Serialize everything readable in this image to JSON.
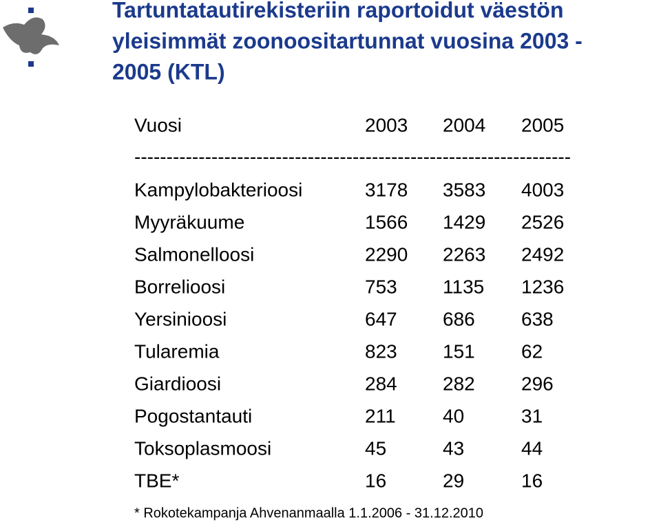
{
  "title": [
    "Tartuntatautirekisteriin raportoidut väestön",
    "yleisimmät zoonoositartunnat vuosina 2003 -",
    "2005 (KTL)"
  ],
  "table": {
    "header": [
      "Vuosi",
      2003,
      2004,
      2005
    ],
    "separator": "--------------------------------------------------------------------",
    "rows": [
      [
        "Kampylobakterioosi",
        3178,
        3583,
        4003
      ],
      [
        "Myyräkuume",
        1566,
        1429,
        2526
      ],
      [
        "Salmonelloosi",
        2290,
        2263,
        2492
      ],
      [
        "Borrelioosi",
        753,
        1135,
        1236
      ],
      [
        "Yersinioosi",
        647,
        686,
        638
      ],
      [
        "Tularemia",
        823,
        151,
        62
      ],
      [
        "Giardioosi",
        284,
        282,
        296
      ],
      [
        "Pogostantauti",
        211,
        40,
        31
      ],
      [
        "Toksoplasmoosi",
        45,
        43,
        44
      ],
      [
        "TBE*",
        16,
        29,
        16
      ]
    ]
  },
  "footnote": "* Rokotekampanja Ahvenanmaalla 1.1.2006 - 31.12.2010"
}
